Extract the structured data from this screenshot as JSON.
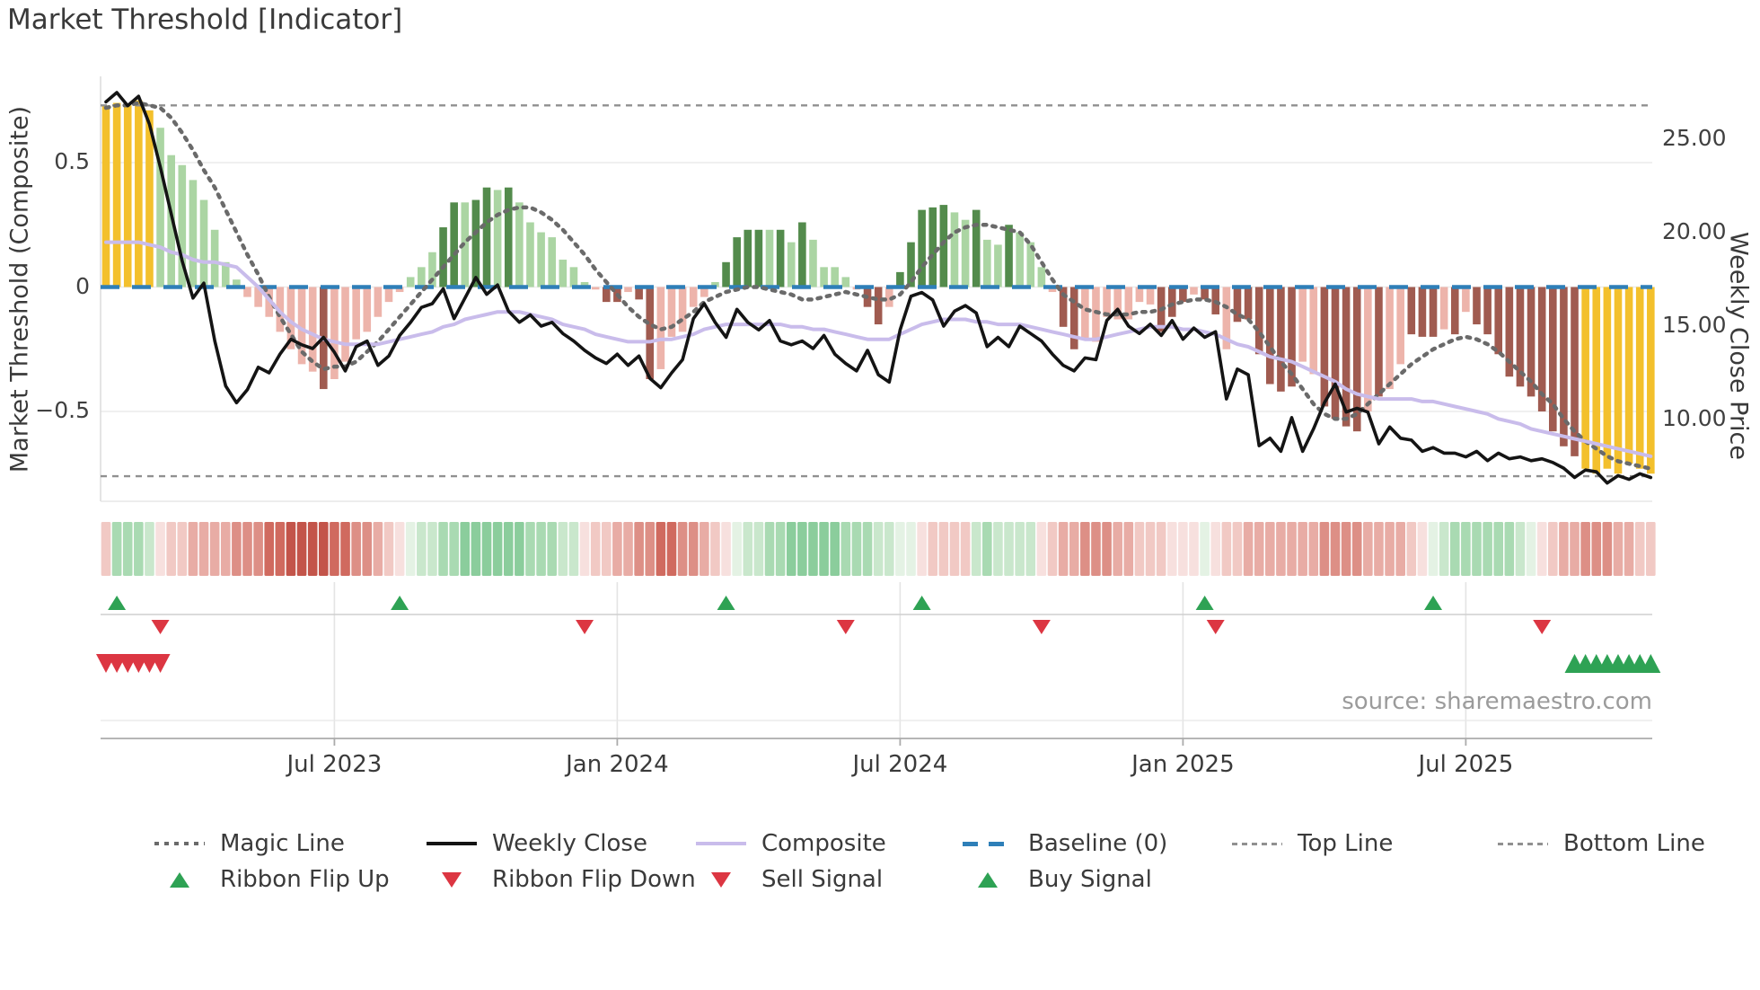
{
  "header": {
    "title": "Market Threshold [Indicator]"
  },
  "source": {
    "text": "source: sharemaestro.com"
  },
  "legend": {
    "row1": [
      "Magic Line",
      "Weekly Close",
      "Composite",
      "Baseline (0)",
      "Top Line",
      "Bottom Line"
    ],
    "row2": [
      "Ribbon Flip Up",
      "Ribbon Flip Down",
      "Sell Signal",
      "Buy Signal"
    ]
  },
  "colors": {
    "bar_yellow": "#F3C02C",
    "bar_green_light": "#ABD5A3",
    "bar_green_dark": "#538B4C",
    "bar_red_light": "#EDB4AB",
    "bar_red_dark": "#A05B50",
    "weekly_close": "#141414",
    "composite": "#C9BCEB",
    "magic_line": "#6A6A6A",
    "baseline": "#2E7FB8",
    "threshold_line": "#909090",
    "grid": "#EBEBEB",
    "signal_green": "#2EA254",
    "signal_red": "#DC3642",
    "ribbon": {
      "r1": "#F7E0DE",
      "r2": "#F1C9C4",
      "r3": "#E8ACA5",
      "r4": "#DD8F86",
      "r5": "#D06A5F",
      "r6": "#C3544A",
      "g1": "#E4F2E4",
      "g2": "#C9E7CC",
      "g3": "#A9DAB2",
      "g4": "#8BCD9C"
    }
  },
  "chart_data": {
    "type": "bar+line weekly market-threshold indicator",
    "n_weeks": 143,
    "x_ticks": [
      {
        "label": "Jul 2023",
        "week": 21
      },
      {
        "label": "Jan 2024",
        "week": 47
      },
      {
        "label": "Jul 2024",
        "week": 73
      },
      {
        "label": "Jan 2025",
        "week": 99
      },
      {
        "label": "Jul 2025",
        "week": 125
      }
    ],
    "y_left": {
      "label": "Market Threshold (Composite)",
      "ticks": [
        "0.5",
        "0",
        "−0.5"
      ],
      "tick_values": [
        0.5,
        0,
        -0.5
      ]
    },
    "y_right": {
      "label": "Weekly Close Price",
      "ticks": [
        "25.00",
        "20.00",
        "15.00",
        "10.00"
      ],
      "tick_values": [
        25,
        20,
        15,
        10
      ]
    },
    "baseline": 0,
    "top_line": 0.73,
    "bottom_line": -0.76,
    "bars": {
      "values": [
        0.73,
        0.74,
        0.73,
        0.75,
        0.71,
        0.64,
        0.53,
        0.49,
        0.43,
        0.35,
        0.23,
        0.1,
        0.03,
        -0.04,
        -0.08,
        -0.12,
        -0.18,
        -0.25,
        -0.31,
        -0.34,
        -0.41,
        -0.37,
        -0.3,
        -0.21,
        -0.18,
        -0.12,
        -0.06,
        -0.02,
        0.04,
        0.08,
        0.14,
        0.24,
        0.34,
        0.34,
        0.35,
        0.4,
        0.39,
        0.4,
        0.34,
        0.26,
        0.22,
        0.2,
        0.11,
        0.08,
        0.02,
        -0.01,
        -0.06,
        -0.06,
        -0.02,
        -0.05,
        -0.37,
        -0.33,
        -0.2,
        -0.18,
        -0.08,
        -0.04,
        0.02,
        0.1,
        0.2,
        0.23,
        0.23,
        0.23,
        0.23,
        0.18,
        0.26,
        0.19,
        0.08,
        0.08,
        0.04,
        -0.01,
        -0.08,
        -0.15,
        -0.08,
        0.06,
        0.18,
        0.31,
        0.32,
        0.33,
        0.3,
        0.27,
        0.31,
        0.19,
        0.17,
        0.25,
        0.22,
        0.18,
        0.08,
        -0.02,
        -0.16,
        -0.25,
        -0.21,
        -0.22,
        -0.12,
        -0.13,
        -0.13,
        -0.06,
        -0.07,
        -0.18,
        -0.12,
        -0.06,
        -0.03,
        -0.05,
        -0.11,
        -0.25,
        -0.14,
        -0.13,
        -0.27,
        -0.39,
        -0.42,
        -0.4,
        -0.3,
        -0.35,
        -0.48,
        -0.53,
        -0.56,
        -0.58,
        -0.5,
        -0.44,
        -0.41,
        -0.31,
        -0.19,
        -0.2,
        -0.2,
        -0.17,
        -0.19,
        -0.1,
        -0.15,
        -0.19,
        -0.27,
        -0.36,
        -0.4,
        -0.44,
        -0.5,
        -0.58,
        -0.64,
        -0.68,
        -0.73,
        -0.75,
        -0.73,
        -0.75,
        -0.71,
        -0.73,
        -0.75
      ],
      "shades": [
        "y",
        "y",
        "y",
        "y",
        "y",
        "lg",
        "lg",
        "lg",
        "lg",
        "lg",
        "lg",
        "lg",
        "lg",
        "lr",
        "lr",
        "lr",
        "lr",
        "lr",
        "lr",
        "lr",
        "dr",
        "lr",
        "lr",
        "lr",
        "lr",
        "lr",
        "lr",
        "lr",
        "lg",
        "lg",
        "lg",
        "dg",
        "dg",
        "lg",
        "dg",
        "dg",
        "lg",
        "dg",
        "lg",
        "lg",
        "lg",
        "lg",
        "lg",
        "lg",
        "lg",
        "lr",
        "dr",
        "dr",
        "lr",
        "dr",
        "dr",
        "lr",
        "lr",
        "lr",
        "lr",
        "lr",
        "lg",
        "dg",
        "dg",
        "dg",
        "dg",
        "lg",
        "dg",
        "lg",
        "dg",
        "lg",
        "lg",
        "lg",
        "lg",
        "lr",
        "dr",
        "dr",
        "lr",
        "dg",
        "dg",
        "dg",
        "dg",
        "dg",
        "lg",
        "lg",
        "dg",
        "lg",
        "lg",
        "dg",
        "lg",
        "lg",
        "lg",
        "lr",
        "dr",
        "dr",
        "lr",
        "lr",
        "lr",
        "lr",
        "lr",
        "lr",
        "lr",
        "dr",
        "dr",
        "dr",
        "lr",
        "dr",
        "dr",
        "lr",
        "dr",
        "dr",
        "dr",
        "dr",
        "dr",
        "dr",
        "lr",
        "lr",
        "dr",
        "dr",
        "dr",
        "dr",
        "lr",
        "dr",
        "lr",
        "lr",
        "dr",
        "dr",
        "dr",
        "lr",
        "dr",
        "lr",
        "dr",
        "dr",
        "dr",
        "dr",
        "dr",
        "dr",
        "dr",
        "dr",
        "dr",
        "dr",
        "y",
        "y",
        "y",
        "y",
        "y",
        "y",
        "y"
      ]
    },
    "weekly_close": [
      27.0,
      27.5,
      26.8,
      27.3,
      25.8,
      23.5,
      21.0,
      18.5,
      16.5,
      17.3,
      14.2,
      11.8,
      10.9,
      11.6,
      12.8,
      12.5,
      13.5,
      14.3,
      14.0,
      13.8,
      14.4,
      13.6,
      12.6,
      13.9,
      14.2,
      12.9,
      13.4,
      14.5,
      15.2,
      16.0,
      16.2,
      17.0,
      15.4,
      16.5,
      17.6,
      16.7,
      17.2,
      15.8,
      15.2,
      15.6,
      15.0,
      15.2,
      14.6,
      14.2,
      13.7,
      13.3,
      13.0,
      13.5,
      12.9,
      13.4,
      12.2,
      11.7,
      12.5,
      13.2,
      15.4,
      16.2,
      15.2,
      14.4,
      15.9,
      15.2,
      14.8,
      15.3,
      14.2,
      14.0,
      14.2,
      13.8,
      14.5,
      13.5,
      13.0,
      12.6,
      13.7,
      12.4,
      12.0,
      14.8,
      16.6,
      16.8,
      16.4,
      15.0,
      15.8,
      16.1,
      15.7,
      13.9,
      14.4,
      13.9,
      15.0,
      14.6,
      14.2,
      13.5,
      12.9,
      12.6,
      13.3,
      13.2,
      15.3,
      15.9,
      15.0,
      14.6,
      15.1,
      14.5,
      15.3,
      14.3,
      14.9,
      14.4,
      14.7,
      11.1,
      12.7,
      12.4,
      8.6,
      9.0,
      8.3,
      10.1,
      8.3,
      9.5,
      10.9,
      11.9,
      10.4,
      10.6,
      10.4,
      8.7,
      9.6,
      9.0,
      8.9,
      8.3,
      8.5,
      8.2,
      8.2,
      8.0,
      8.3,
      7.8,
      8.2,
      7.9,
      8.0,
      7.8,
      7.9,
      7.7,
      7.4,
      6.9,
      7.3,
      7.2,
      6.6,
      7.0,
      6.8,
      7.1,
      6.9
    ],
    "composite": [
      0.18,
      0.18,
      0.18,
      0.18,
      0.17,
      0.16,
      0.14,
      0.13,
      0.11,
      0.1,
      0.1,
      0.09,
      0.08,
      0.04,
      0.0,
      -0.05,
      -0.1,
      -0.14,
      -0.17,
      -0.19,
      -0.21,
      -0.22,
      -0.23,
      -0.23,
      -0.23,
      -0.23,
      -0.22,
      -0.21,
      -0.2,
      -0.19,
      -0.18,
      -0.16,
      -0.15,
      -0.13,
      -0.12,
      -0.11,
      -0.1,
      -0.1,
      -0.1,
      -0.11,
      -0.12,
      -0.13,
      -0.15,
      -0.16,
      -0.17,
      -0.19,
      -0.2,
      -0.21,
      -0.22,
      -0.22,
      -0.22,
      -0.21,
      -0.21,
      -0.2,
      -0.19,
      -0.17,
      -0.16,
      -0.15,
      -0.15,
      -0.15,
      -0.15,
      -0.15,
      -0.15,
      -0.16,
      -0.16,
      -0.17,
      -0.17,
      -0.18,
      -0.19,
      -0.2,
      -0.21,
      -0.21,
      -0.21,
      -0.19,
      -0.17,
      -0.15,
      -0.14,
      -0.13,
      -0.13,
      -0.13,
      -0.14,
      -0.14,
      -0.15,
      -0.15,
      -0.15,
      -0.16,
      -0.17,
      -0.18,
      -0.19,
      -0.2,
      -0.21,
      -0.21,
      -0.2,
      -0.19,
      -0.18,
      -0.17,
      -0.16,
      -0.16,
      -0.16,
      -0.17,
      -0.17,
      -0.18,
      -0.19,
      -0.21,
      -0.23,
      -0.24,
      -0.26,
      -0.28,
      -0.29,
      -0.3,
      -0.32,
      -0.34,
      -0.36,
      -0.38,
      -0.41,
      -0.43,
      -0.44,
      -0.45,
      -0.45,
      -0.45,
      -0.45,
      -0.46,
      -0.46,
      -0.47,
      -0.48,
      -0.49,
      -0.5,
      -0.51,
      -0.53,
      -0.54,
      -0.55,
      -0.57,
      -0.58,
      -0.59,
      -0.6,
      -0.61,
      -0.62,
      -0.63,
      -0.64,
      -0.65,
      -0.66,
      -0.67,
      -0.68
    ],
    "magic_line": [
      0.72,
      0.73,
      0.73,
      0.74,
      0.73,
      0.72,
      0.68,
      0.62,
      0.55,
      0.47,
      0.4,
      0.31,
      0.22,
      0.13,
      0.05,
      -0.04,
      -0.12,
      -0.19,
      -0.26,
      -0.3,
      -0.33,
      -0.32,
      -0.32,
      -0.3,
      -0.26,
      -0.22,
      -0.17,
      -0.12,
      -0.07,
      -0.02,
      0.03,
      0.08,
      0.13,
      0.18,
      0.22,
      0.26,
      0.29,
      0.31,
      0.32,
      0.32,
      0.3,
      0.27,
      0.23,
      0.18,
      0.13,
      0.07,
      0.02,
      -0.03,
      -0.08,
      -0.12,
      -0.15,
      -0.17,
      -0.16,
      -0.13,
      -0.1,
      -0.06,
      -0.04,
      -0.02,
      -0.01,
      0.0,
      0.0,
      -0.01,
      -0.02,
      -0.03,
      -0.05,
      -0.05,
      -0.04,
      -0.03,
      -0.02,
      -0.03,
      -0.04,
      -0.05,
      -0.05,
      -0.03,
      0.02,
      0.08,
      0.13,
      0.18,
      0.22,
      0.24,
      0.25,
      0.25,
      0.24,
      0.23,
      0.22,
      0.17,
      0.1,
      0.03,
      -0.03,
      -0.06,
      -0.09,
      -0.1,
      -0.11,
      -0.11,
      -0.11,
      -0.1,
      -0.1,
      -0.09,
      -0.07,
      -0.06,
      -0.05,
      -0.05,
      -0.06,
      -0.08,
      -0.11,
      -0.13,
      -0.18,
      -0.24,
      -0.3,
      -0.35,
      -0.41,
      -0.47,
      -0.51,
      -0.53,
      -0.53,
      -0.51,
      -0.47,
      -0.43,
      -0.39,
      -0.35,
      -0.31,
      -0.28,
      -0.25,
      -0.23,
      -0.21,
      -0.2,
      -0.21,
      -0.23,
      -0.26,
      -0.3,
      -0.34,
      -0.38,
      -0.43,
      -0.47,
      -0.53,
      -0.58,
      -0.62,
      -0.65,
      -0.68,
      -0.7,
      -0.71,
      -0.72,
      -0.73
    ],
    "ribbon": [
      "r2",
      "g3",
      "g3",
      "g3",
      "g2",
      "r1",
      "r2",
      "r2",
      "r3",
      "r3",
      "r3",
      "r3",
      "r4",
      "r4",
      "r4",
      "r5",
      "r5",
      "r6",
      "r6",
      "r6",
      "r6",
      "r5",
      "r5",
      "r4",
      "r4",
      "r3",
      "r2",
      "r1",
      "g1",
      "g2",
      "g2",
      "g3",
      "g3",
      "g4",
      "g4",
      "g4",
      "g4",
      "g4",
      "g4",
      "g3",
      "g3",
      "g3",
      "g2",
      "g2",
      "r1",
      "r2",
      "r2",
      "r3",
      "r3",
      "r4",
      "r4",
      "r5",
      "r5",
      "r4",
      "r4",
      "r3",
      "r2",
      "r1",
      "g1",
      "g2",
      "g2",
      "g3",
      "g3",
      "g4",
      "g4",
      "g4",
      "g4",
      "g4",
      "g3",
      "g3",
      "g3",
      "g2",
      "g2",
      "g1",
      "g1",
      "r1",
      "r2",
      "r2",
      "r2",
      "r2",
      "g2",
      "g3",
      "g2",
      "g2",
      "g2",
      "g2",
      "r1",
      "r2",
      "r3",
      "r3",
      "r4",
      "r4",
      "r4",
      "r3",
      "r3",
      "r2",
      "r2",
      "r2",
      "r1",
      "r1",
      "r1",
      "g1",
      "r1",
      "r2",
      "r2",
      "r3",
      "r3",
      "r3",
      "r3",
      "r3",
      "r3",
      "r3",
      "r4",
      "r4",
      "r4",
      "r4",
      "r3",
      "r3",
      "r3",
      "r3",
      "r2",
      "r1",
      "g1",
      "g2",
      "g3",
      "g3",
      "g3",
      "g3",
      "g3",
      "g3",
      "g2",
      "g1",
      "r1",
      "r2",
      "r3",
      "r3",
      "r4",
      "r4",
      "r4",
      "r3",
      "r3",
      "r2",
      "r2"
    ],
    "signals": {
      "ribbon_flip_up_weeks": [
        1,
        27,
        57,
        75,
        101,
        122
      ],
      "ribbon_flip_down_weeks": [
        5,
        44,
        68,
        86,
        102,
        132
      ],
      "sell_signal_weeks": [
        0,
        1,
        2,
        3,
        4,
        5
      ],
      "buy_signal_weeks": [
        135,
        136,
        137,
        138,
        139,
        140,
        141,
        142
      ]
    }
  }
}
